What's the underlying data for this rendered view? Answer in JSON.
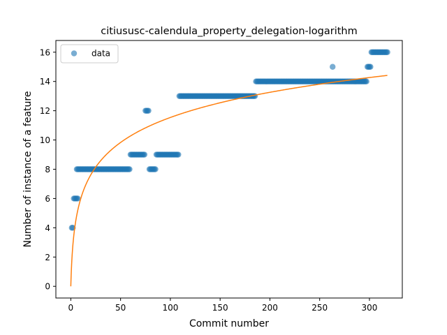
{
  "chart_data": {
    "type": "scatter",
    "title": "citiususc-calendula_property_delegation-logarithm",
    "xlabel": "Commit number",
    "ylabel": "Number of instance of a feature",
    "xlim": [
      -15,
      333
    ],
    "ylim": [
      -0.8,
      16.8
    ],
    "xticks": [
      0,
      50,
      100,
      150,
      200,
      250,
      300
    ],
    "yticks": [
      0,
      2,
      4,
      6,
      8,
      10,
      12,
      14,
      16
    ],
    "grid": false,
    "legend": {
      "position": "top-left",
      "entries": [
        "data"
      ]
    },
    "colors": {
      "data": "#1f77b4",
      "fit": "#ff7f0e"
    },
    "series": [
      {
        "name": "data",
        "kind": "scatter",
        "segments": [
          {
            "x_start": 1,
            "x_end": 2,
            "y": 4
          },
          {
            "x_start": 3,
            "x_end": 7,
            "y": 6
          },
          {
            "x_start": 6,
            "x_end": 59,
            "y": 8
          },
          {
            "x_start": 60,
            "x_end": 74,
            "y": 9
          },
          {
            "x_start": 75,
            "x_end": 78,
            "y": 12
          },
          {
            "x_start": 79,
            "x_end": 85,
            "y": 8
          },
          {
            "x_start": 86,
            "x_end": 108,
            "y": 9
          },
          {
            "x_start": 109,
            "x_end": 185,
            "y": 13
          },
          {
            "x_start": 186,
            "x_end": 297,
            "y": 14
          },
          {
            "x_start": 263,
            "x_end": 263,
            "y": 15
          },
          {
            "x_start": 298,
            "x_end": 301,
            "y": 15
          },
          {
            "x_start": 302,
            "x_end": 318,
            "y": 16
          }
        ]
      },
      {
        "kind": "line",
        "function": "logarithmic",
        "coefficients": {
          "a": 2.5,
          "b": 0.0
        },
        "x_range": [
          0,
          318
        ]
      }
    ]
  }
}
